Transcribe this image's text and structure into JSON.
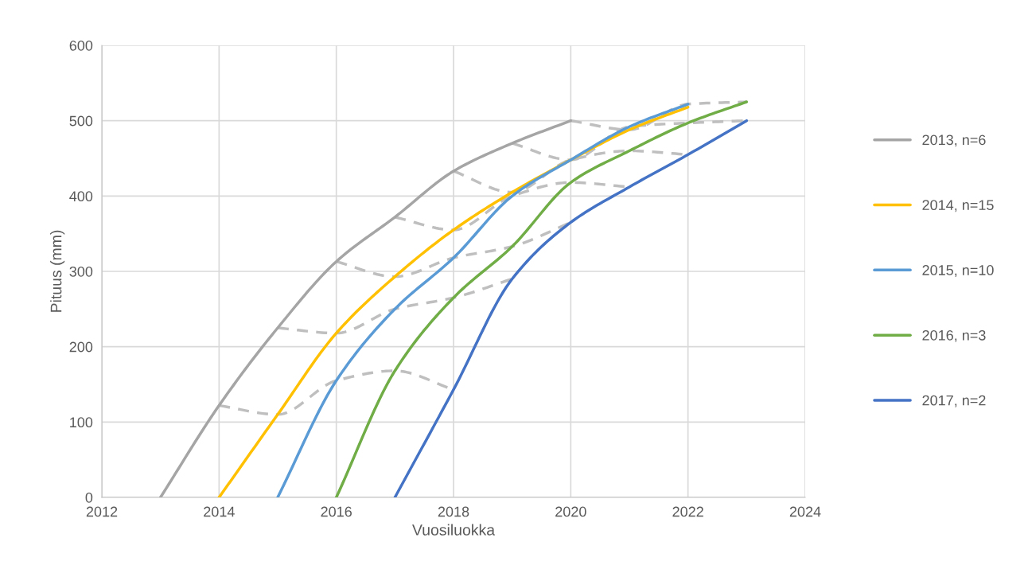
{
  "chart_data": {
    "type": "line",
    "xlabel": "Vuosiluokka",
    "ylabel": "Pituus (mm)",
    "xlim": [
      2012,
      2024
    ],
    "xticks": [
      2012,
      2014,
      2016,
      2018,
      2020,
      2022,
      2024
    ],
    "ylim": [
      0,
      600
    ],
    "yticks": [
      0,
      100,
      200,
      300,
      400,
      500,
      600
    ],
    "grid": true,
    "legend": "right",
    "marker": "none",
    "line_style": "solid",
    "series": [
      {
        "name": "2013, n=6",
        "color": "#a5a5a5",
        "x": [
          2013,
          2014,
          2015,
          2016,
          2017,
          2018,
          2019,
          2020
        ],
        "values": [
          0,
          122,
          225,
          313,
          372,
          433,
          470,
          500
        ]
      },
      {
        "name": "2014, n=15",
        "color": "#ffc000",
        "x": [
          2014,
          2015,
          2016,
          2017,
          2018,
          2019,
          2020,
          2021,
          2022
        ],
        "values": [
          0,
          110,
          218,
          293,
          355,
          405,
          448,
          488,
          518
        ]
      },
      {
        "name": "2015, n=10",
        "color": "#5b9bd5",
        "x": [
          2015,
          2016,
          2017,
          2018,
          2019,
          2020,
          2021,
          2022
        ],
        "values": [
          0,
          155,
          250,
          318,
          400,
          448,
          492,
          522
        ]
      },
      {
        "name": "2016, n=3",
        "color": "#70ad47",
        "x": [
          2016,
          2017,
          2018,
          2019,
          2020,
          2021,
          2022,
          2023
        ],
        "values": [
          0,
          168,
          265,
          333,
          418,
          460,
          497,
          525
        ]
      },
      {
        "name": "2017, n=2",
        "color": "#4472c4",
        "x": [
          2017,
          2018,
          2019,
          2020,
          2021,
          2022,
          2023
        ],
        "values": [
          0,
          143,
          290,
          365,
          412,
          455,
          500
        ]
      },
      {
        "color": "#bfbfbf",
        "line_style": "dashed",
        "x": [
          2014,
          2015,
          2016,
          2017,
          2018
        ],
        "values": [
          122,
          110,
          155,
          168,
          143
        ]
      },
      {
        "color": "#bfbfbf",
        "line_style": "dashed",
        "x": [
          2015,
          2016,
          2017,
          2018,
          2019
        ],
        "values": [
          225,
          218,
          250,
          265,
          290
        ]
      },
      {
        "color": "#bfbfbf",
        "line_style": "dashed",
        "x": [
          2016,
          2017,
          2018,
          2019,
          2020
        ],
        "values": [
          313,
          293,
          318,
          333,
          365
        ]
      },
      {
        "color": "#bfbfbf",
        "line_style": "dashed",
        "x": [
          2017,
          2018,
          2019,
          2020,
          2021
        ],
        "values": [
          372,
          355,
          400,
          418,
          412
        ]
      },
      {
        "color": "#bfbfbf",
        "line_style": "dashed",
        "x": [
          2018,
          2019,
          2020,
          2021,
          2022
        ],
        "values": [
          433,
          405,
          448,
          460,
          455
        ]
      },
      {
        "color": "#bfbfbf",
        "line_style": "dashed",
        "x": [
          2019,
          2020,
          2021,
          2022,
          2023
        ],
        "values": [
          470,
          448,
          492,
          497,
          500
        ]
      },
      {
        "color": "#bfbfbf",
        "line_style": "dashed",
        "x": [
          2020,
          2021,
          2022,
          2023
        ],
        "values": [
          500,
          488,
          522,
          525
        ]
      }
    ]
  }
}
